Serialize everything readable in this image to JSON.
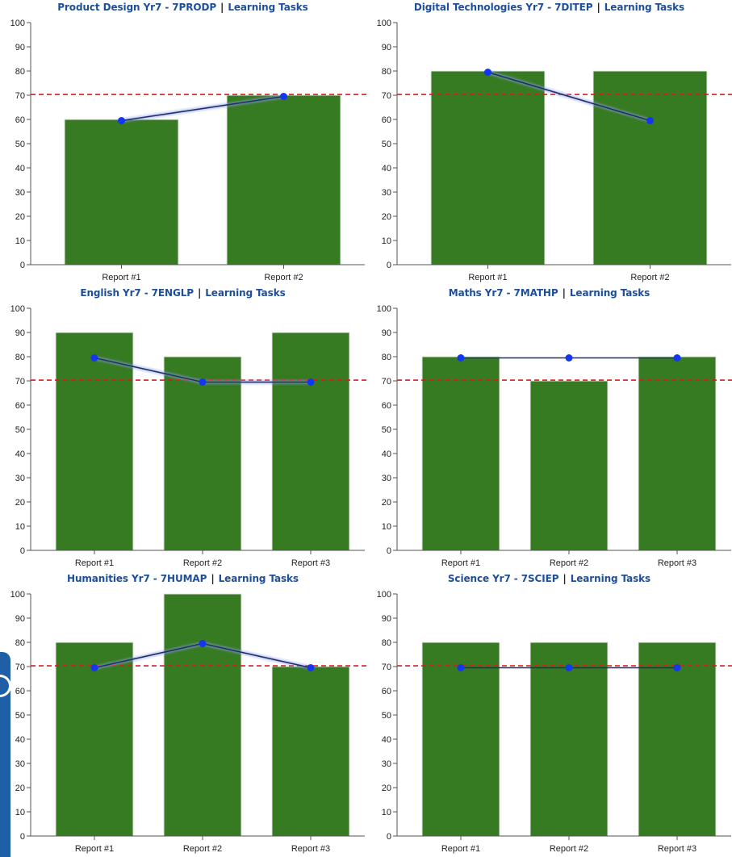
{
  "colors": {
    "title": "#1f4e9a",
    "bar": "#367a22",
    "line": "#1e2f6a",
    "point": "#1436f0",
    "threshold": "#e01818",
    "axis": "#555555"
  },
  "title_separator": "|",
  "chart_data": [
    {
      "type": "bar",
      "title": "Product Design Yr7 - 7PRODP",
      "title_link": "Learning Tasks",
      "categories": [
        "Report #1",
        "Report #2"
      ],
      "series": [
        {
          "type": "bar",
          "values": [
            60,
            70
          ]
        },
        {
          "type": "line",
          "values": [
            59.5,
            69.5
          ]
        }
      ],
      "threshold": 70.3,
      "ylim": [
        0,
        100
      ],
      "yticks": [
        0,
        10,
        20,
        30,
        40,
        50,
        60,
        70,
        80,
        90,
        100
      ]
    },
    {
      "type": "bar",
      "title": "Digital Technologies Yr7 - 7DITEP",
      "title_link": "Learning Tasks",
      "categories": [
        "Report #1",
        "Report #2"
      ],
      "series": [
        {
          "type": "bar",
          "values": [
            80,
            80
          ]
        },
        {
          "type": "line",
          "values": [
            79.5,
            59.5
          ]
        }
      ],
      "threshold": 70.3,
      "ylim": [
        0,
        100
      ],
      "yticks": [
        0,
        10,
        20,
        30,
        40,
        50,
        60,
        70,
        80,
        90,
        100
      ]
    },
    {
      "type": "bar",
      "title": "English Yr7 - 7ENGLP",
      "title_link": "Learning Tasks",
      "categories": [
        "Report #1",
        "Report #2",
        "Report #3"
      ],
      "series": [
        {
          "type": "bar",
          "values": [
            90,
            80,
            90
          ]
        },
        {
          "type": "line",
          "values": [
            79.5,
            69.5,
            69.5
          ]
        }
      ],
      "threshold": 70.3,
      "ylim": [
        0,
        100
      ],
      "yticks": [
        0,
        10,
        20,
        30,
        40,
        50,
        60,
        70,
        80,
        90,
        100
      ]
    },
    {
      "type": "bar",
      "title": "Maths Yr7 - 7MATHP",
      "title_link": "Learning Tasks",
      "categories": [
        "Report #1",
        "Report #2",
        "Report #3"
      ],
      "series": [
        {
          "type": "bar",
          "values": [
            80,
            70,
            80
          ]
        },
        {
          "type": "line",
          "values": [
            79.5,
            79.5,
            79.5
          ]
        }
      ],
      "threshold": 70.3,
      "ylim": [
        0,
        100
      ],
      "yticks": [
        0,
        10,
        20,
        30,
        40,
        50,
        60,
        70,
        80,
        90,
        100
      ]
    },
    {
      "type": "bar",
      "title": "Humanities Yr7 - 7HUMAP",
      "title_link": "Learning Tasks",
      "categories": [
        "Report #1",
        "Report #2",
        "Report #3"
      ],
      "series": [
        {
          "type": "bar",
          "values": [
            80,
            100,
            70
          ]
        },
        {
          "type": "line",
          "values": [
            69.5,
            79.5,
            69.5
          ]
        }
      ],
      "threshold": 70.3,
      "ylim": [
        0,
        100
      ],
      "yticks": [
        0,
        10,
        20,
        30,
        40,
        50,
        60,
        70,
        80,
        90,
        100
      ]
    },
    {
      "type": "bar",
      "title": "Science Yr7 - 7SCIEP",
      "title_link": "Learning Tasks",
      "categories": [
        "Report #1",
        "Report #2",
        "Report #3"
      ],
      "series": [
        {
          "type": "bar",
          "values": [
            80,
            80,
            80
          ]
        },
        {
          "type": "line",
          "values": [
            69.5,
            69.5,
            69.5
          ]
        }
      ],
      "threshold": 70.3,
      "ylim": [
        0,
        100
      ],
      "yticks": [
        0,
        10,
        20,
        30,
        40,
        50,
        60,
        70,
        80,
        90,
        100
      ]
    }
  ]
}
